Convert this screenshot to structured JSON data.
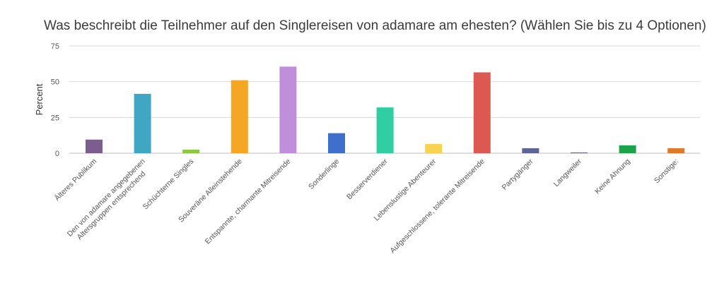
{
  "chart_data": {
    "type": "bar",
    "title": "Was beschreibt die Teilnehmer auf den Singlereisen von adamare am ehesten? (Wählen Sie bis zu 4 Optionen)",
    "xlabel": "",
    "ylabel": "Percent",
    "ylim": [
      0,
      75
    ],
    "yticks": [
      "0",
      "25",
      "50",
      "75"
    ],
    "grid": true,
    "categories": [
      "Älteres Publikum",
      "Den von adamare angegebenen Altersgruppen entsprechend",
      "Schüchterne Singles",
      "Souveräne Alleinstehende",
      "Entspannte, charmante Mitreisende",
      "Sonderlinge",
      "Besserverdiener",
      "Lebenslustige Abenteurer",
      "Aufgeschlossene, tolerante Mitreisende",
      "Partygänger",
      "Langweiler",
      "Keine Ahnung",
      "Sonstige:"
    ],
    "values": [
      9.5,
      41.5,
      2.5,
      51,
      60.5,
      14,
      32,
      6.5,
      56.5,
      3.5,
      0.5,
      5.5,
      3.5
    ],
    "colors": [
      "#7b5e8f",
      "#3fa7c3",
      "#8dc63f",
      "#f5a623",
      "#c08fdc",
      "#3e6fcd",
      "#2fcea3",
      "#f8d34f",
      "#dc5850",
      "#5f6496",
      "#5a5a72",
      "#1aa34a",
      "#dd7a2c"
    ]
  }
}
